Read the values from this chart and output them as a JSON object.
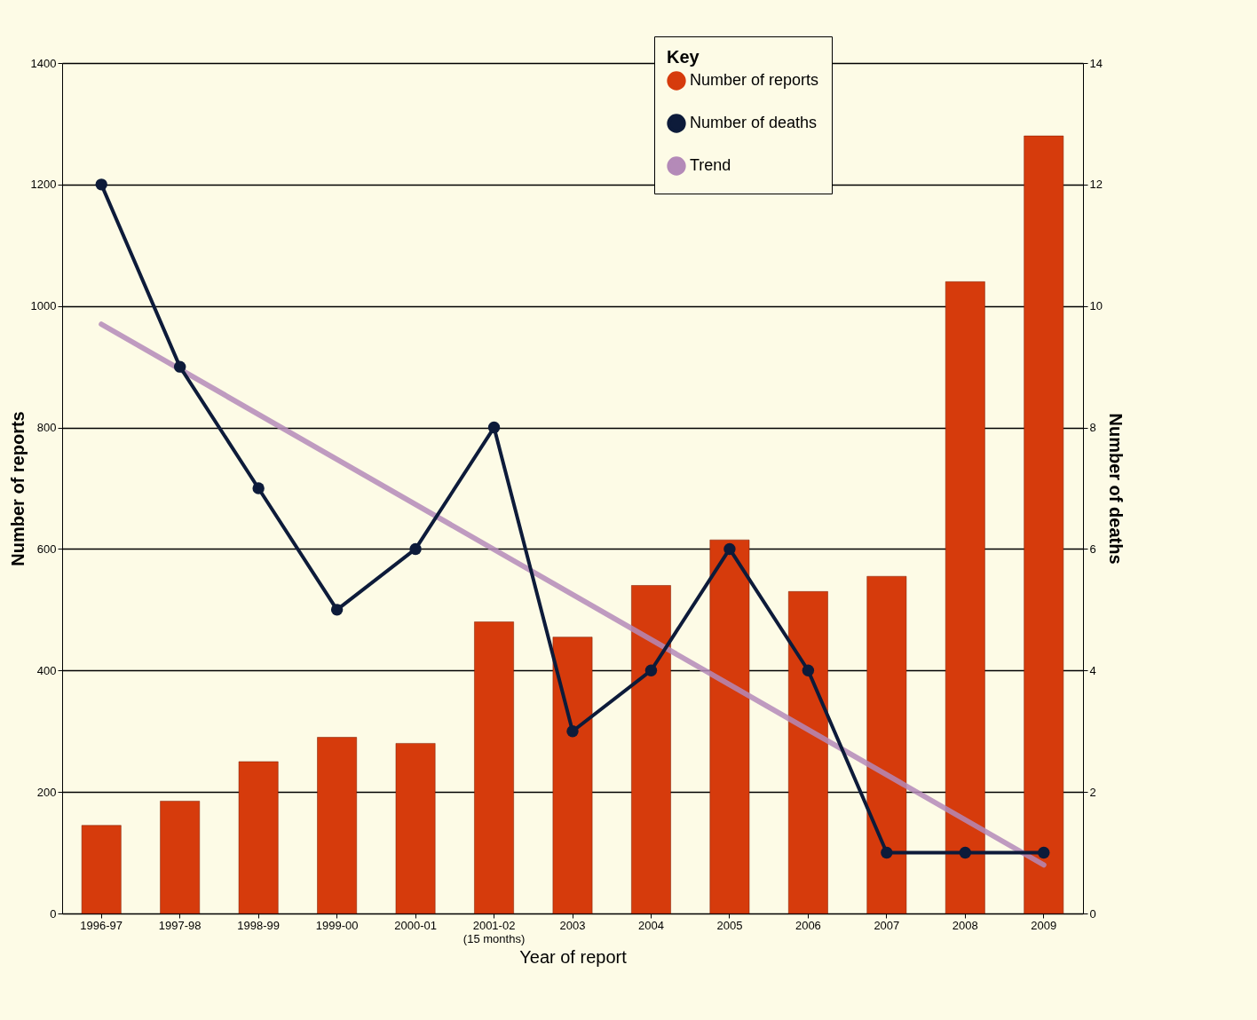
{
  "chart_data": {
    "type": "bar",
    "categories": [
      "1996-97",
      "1997-98",
      "1998-99",
      "1999-00",
      "2000-01",
      "2001-02\n(15 months)",
      "2003",
      "2004",
      "2005",
      "2006",
      "2007",
      "2008",
      "2009"
    ],
    "series": [
      {
        "name": "Number of reports",
        "color": "#d63b0c",
        "values": [
          145,
          185,
          250,
          290,
          280,
          480,
          455,
          540,
          615,
          530,
          555,
          1040,
          1280
        ]
      },
      {
        "name": "Number of deaths",
        "type": "line",
        "axis": "y2",
        "color": "#0d1b3a",
        "marker": "circle",
        "values": [
          12,
          9,
          7,
          5,
          6,
          8,
          3,
          4,
          6,
          4,
          1,
          1,
          1
        ]
      },
      {
        "name": "Trend",
        "type": "line",
        "axis": "y2",
        "color": "#b48ab8",
        "marker": "none",
        "values": [
          9.7,
          null,
          null,
          null,
          null,
          null,
          null,
          null,
          null,
          null,
          null,
          null,
          0.8
        ]
      }
    ],
    "xlabel": "Year of report",
    "ylabel": "Number of reports",
    "y2label": "Number of deaths",
    "legend_title": "Key",
    "ylim": [
      0,
      1400
    ],
    "yticks": [
      0,
      200,
      400,
      600,
      800,
      1000,
      1200,
      1400
    ],
    "y2lim": [
      0,
      14
    ],
    "y2ticks": [
      0,
      2,
      4,
      6,
      8,
      10,
      12,
      14
    ],
    "grid": "y",
    "legend": "top right",
    "line_style": "solid"
  }
}
